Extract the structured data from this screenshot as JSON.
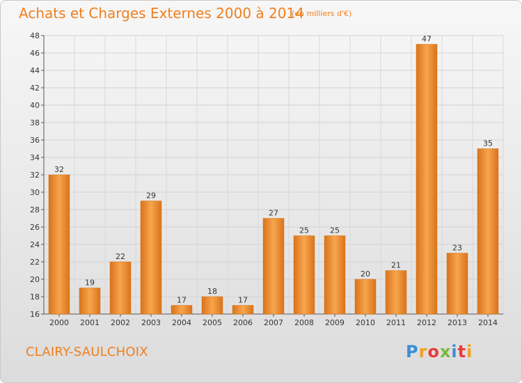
{
  "header": {
    "title": "Achats et Charges Externes 2000 à 2014",
    "subtitle": "(en milliers d'€)"
  },
  "footer": {
    "place": "CLAIRY-SAULCHOIX",
    "brand": [
      "P",
      "r",
      "o",
      "x",
      "i",
      "t",
      "i"
    ]
  },
  "colors": {
    "bar_light": "#f7a54d",
    "bar_dark": "#d9731a",
    "accent": "#f07f1c"
  },
  "chart_data": {
    "type": "bar",
    "title": "Achats et Charges Externes 2000 à 2014",
    "subtitle": "(en milliers d'€)",
    "xlabel": "",
    "ylabel": "",
    "categories": [
      "2000",
      "2001",
      "2002",
      "2003",
      "2004",
      "2005",
      "2006",
      "2007",
      "2008",
      "2009",
      "2010",
      "2011",
      "2012",
      "2013",
      "2014"
    ],
    "values": [
      32,
      19,
      22,
      29,
      17,
      18,
      17,
      27,
      25,
      25,
      20,
      21,
      47,
      23,
      35
    ],
    "ylim": [
      16,
      48
    ],
    "yticks": [
      16,
      18,
      20,
      22,
      24,
      26,
      28,
      30,
      32,
      34,
      36,
      38,
      40,
      42,
      44,
      46,
      48
    ],
    "grid": true,
    "legend": "none"
  }
}
